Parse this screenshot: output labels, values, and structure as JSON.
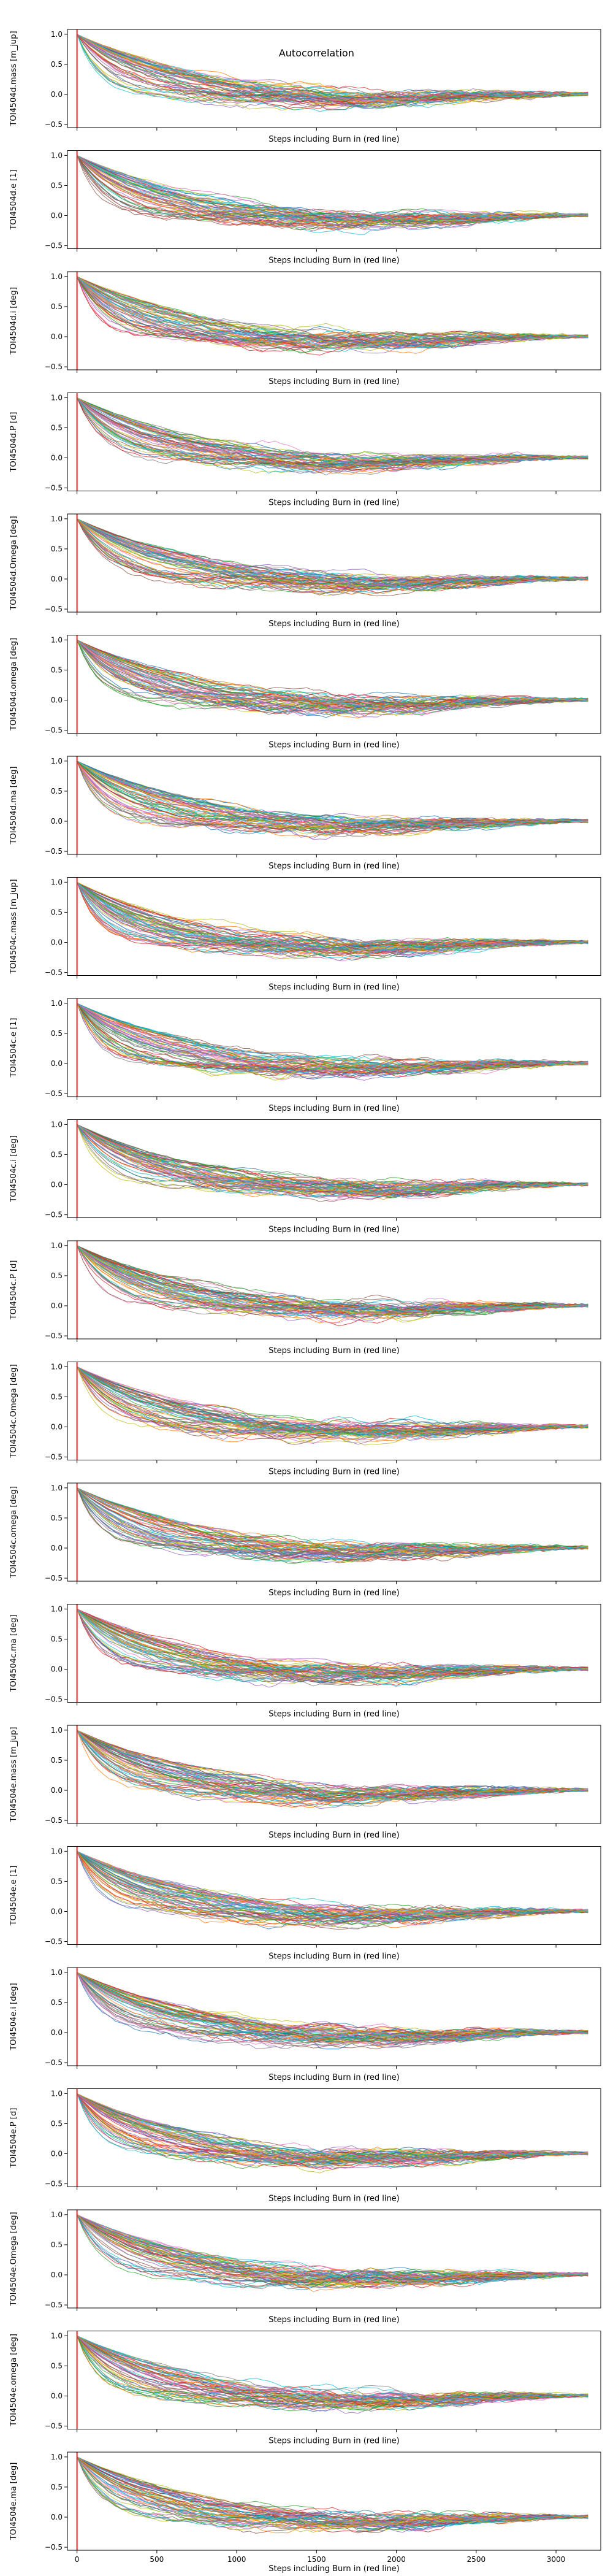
{
  "figure": {
    "title": "Autocorrelation"
  },
  "chart_data": {
    "type": "line",
    "panel_count": 21,
    "xlabel": "Steps including Burn in (red line)",
    "xlim": [
      -60,
      3280
    ],
    "ylim": [
      -0.55,
      1.08
    ],
    "x_ticks": [
      0,
      500,
      1000,
      1500,
      2000,
      2500,
      3000
    ],
    "y_ticks": [
      -0.5,
      0.0,
      0.5,
      1.0
    ],
    "x_tick_labels": [
      "0",
      "500",
      "1000",
      "1500",
      "2000",
      "2500",
      "3000"
    ],
    "y_tick_labels": [
      "−0.5",
      "0.0",
      "0.5",
      "1.0"
    ],
    "tick_labels_shown_on": "all panels for y; bottom panel only for x",
    "burn_in_line": {
      "x": 0,
      "color": "#d62728"
    },
    "grid": false,
    "legend": "none",
    "series_palette": [
      "#1f77b4",
      "#ff7f0e",
      "#2ca02c",
      "#d62728",
      "#9467bd",
      "#8c564b",
      "#e377c2",
      "#7f7f7f",
      "#bcbd22",
      "#17becf"
    ],
    "series_line_count_per_panel": 60,
    "series_x_range": [
      0,
      3200
    ],
    "series_behaviour": "each series starts at 1.0, decays to roughly 0 within 300-1500 steps, wanders between about -0.35 and 0.3 and returns near 0 at the end",
    "panels": [
      {
        "ylabel": "TOI4504d.mass [m_jup]",
        "show_title": true
      },
      {
        "ylabel": "TOI4504d.e [1]"
      },
      {
        "ylabel": "TOI4504d.i [deg]"
      },
      {
        "ylabel": "TOI4504d.P [d]"
      },
      {
        "ylabel": "TOI4504d.Omega [deg]"
      },
      {
        "ylabel": "TOI4504d.omega [deg]"
      },
      {
        "ylabel": "TOI4504d.ma [deg]"
      },
      {
        "ylabel": "TOI4504c.mass [m_jup]"
      },
      {
        "ylabel": "TOI4504c.e [1]"
      },
      {
        "ylabel": "TOI4504c.i [deg]"
      },
      {
        "ylabel": "TOI4504c.P [d]"
      },
      {
        "ylabel": "TOI4504c.Omega [deg]"
      },
      {
        "ylabel": "TOI4504c.omega [deg]"
      },
      {
        "ylabel": "TOI4504c.ma [deg]"
      },
      {
        "ylabel": "TOI4504e.mass [m_jup]"
      },
      {
        "ylabel": "TOI4504e.e [1]"
      },
      {
        "ylabel": "TOI4504e.i [deg]"
      },
      {
        "ylabel": "TOI4504e.P [d]"
      },
      {
        "ylabel": "TOI4504e.Omega [deg]"
      },
      {
        "ylabel": "TOI4504e.omega [deg]"
      },
      {
        "ylabel": "TOI4504e.ma [deg]"
      }
    ]
  }
}
